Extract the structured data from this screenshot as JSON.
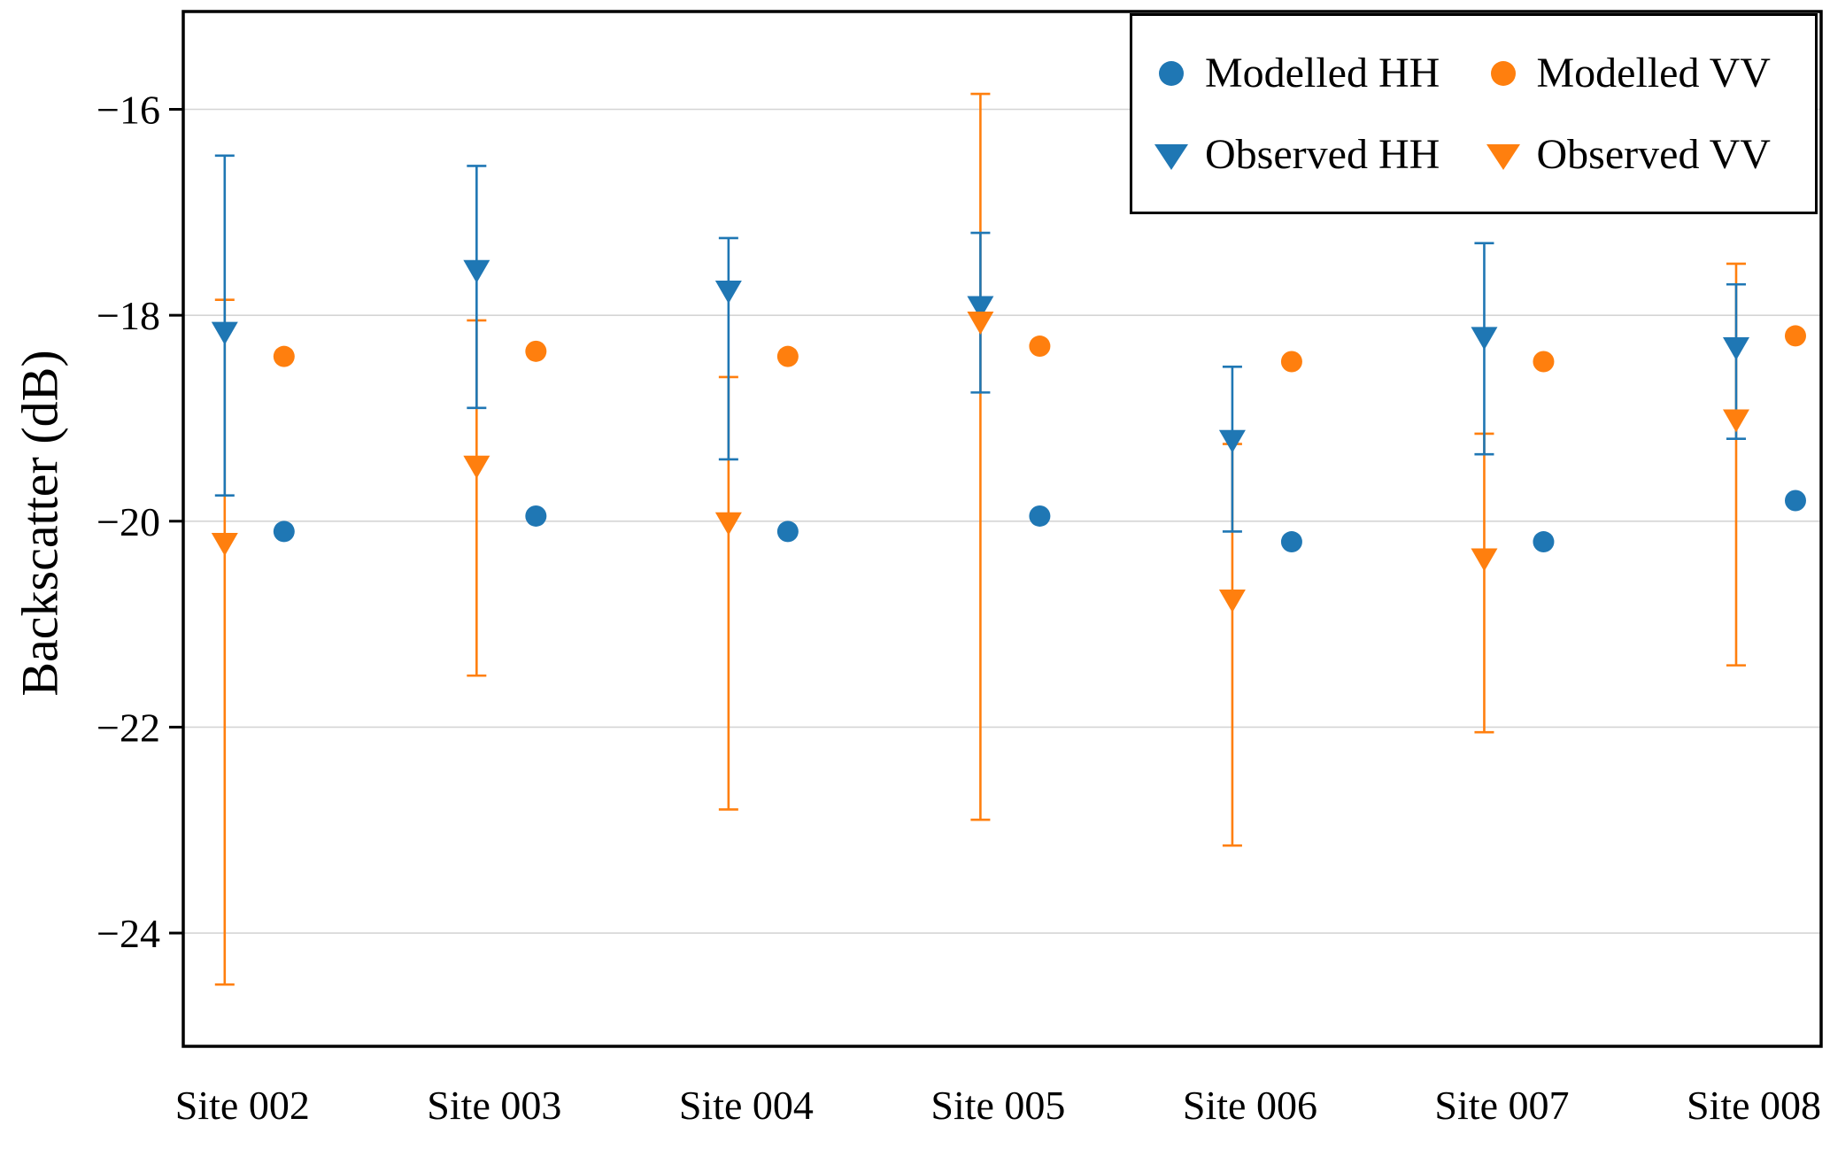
{
  "figure": {
    "background": "#ffffff",
    "frame_color": "#000000",
    "gridline_color": "#d5d5d5"
  },
  "chart_data": {
    "type": "scatter",
    "title": "",
    "xlabel": "",
    "ylabel": "Backscatter (dB)",
    "ylim": [
      -25.1,
      -15.05
    ],
    "yticks": [
      -16,
      -18,
      -20,
      -22,
      -24
    ],
    "grid": "horizontal",
    "legend_position": "top-right",
    "categories": [
      "Site 002",
      "Site 003",
      "Site 004",
      "Site 005",
      "Site 006",
      "Site 007",
      "Site 008"
    ],
    "series": [
      {
        "name": "Modelled HH",
        "marker": "circle",
        "color": "#1f77b4",
        "values": [
          -20.1,
          -19.95,
          -20.1,
          -19.95,
          -20.2,
          -20.2,
          -19.8
        ]
      },
      {
        "name": "Modelled VV",
        "marker": "circle",
        "color": "#ff7f0e",
        "values": [
          -18.4,
          -18.35,
          -18.4,
          -18.3,
          -18.45,
          -18.45,
          -18.2
        ]
      },
      {
        "name": "Observed HH",
        "marker": "triangle-down",
        "color": "#1f77b4",
        "values": [
          -18.15,
          -17.55,
          -17.75,
          -17.9,
          -19.2,
          -18.2,
          -18.3
        ],
        "err_top": [
          -16.45,
          -16.55,
          -17.25,
          -17.2,
          -18.5,
          -17.3,
          -17.7
        ],
        "err_bottom": [
          -19.75,
          -18.9,
          -19.4,
          -18.75,
          -20.1,
          -19.35,
          -19.2
        ]
      },
      {
        "name": "Observed VV",
        "marker": "triangle-down",
        "color": "#ff7f0e",
        "values": [
          -20.2,
          -19.45,
          -20.0,
          -18.05,
          -20.75,
          -20.35,
          -19.0
        ],
        "err_top": [
          -17.85,
          -18.05,
          -18.6,
          -15.85,
          -19.25,
          -19.15,
          -17.5
        ],
        "err_bottom": [
          -24.5,
          -21.5,
          -22.8,
          -22.9,
          -23.15,
          -22.05,
          -21.4
        ]
      }
    ]
  }
}
